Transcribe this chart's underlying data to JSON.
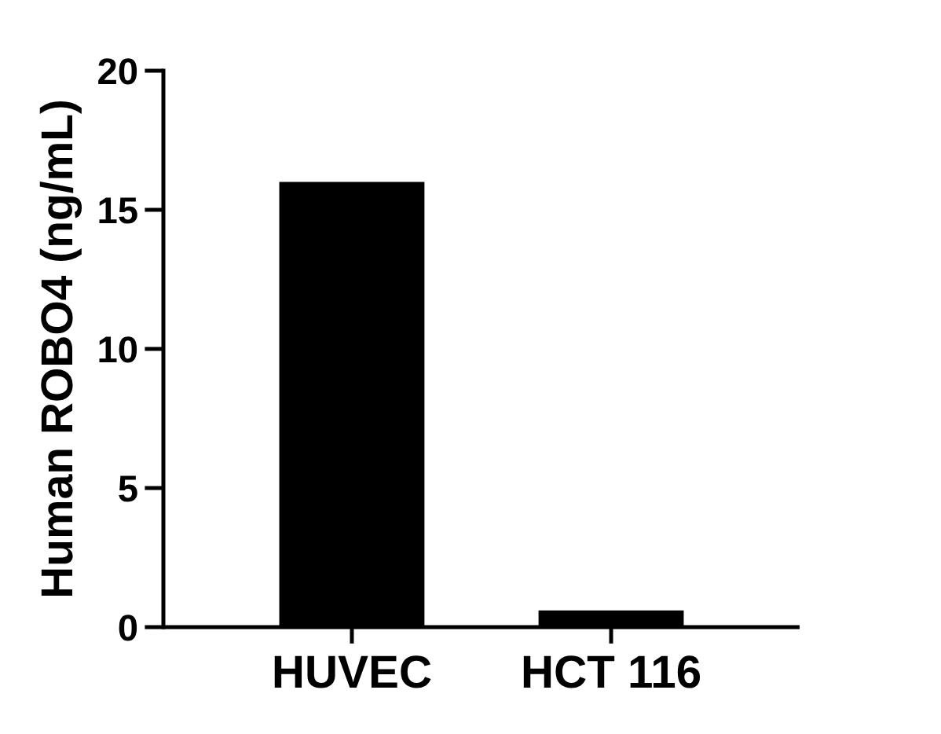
{
  "chart_data": {
    "type": "bar",
    "categories": [
      "HUVEC",
      "HCT 116"
    ],
    "values": [
      16.0,
      0.6
    ],
    "color": "#000000",
    "ylabel": "Human ROBO4 (ng/mL)",
    "ylim": [
      0,
      20
    ],
    "yticks": [
      0,
      5,
      10,
      15,
      20
    ],
    "grid": false
  }
}
